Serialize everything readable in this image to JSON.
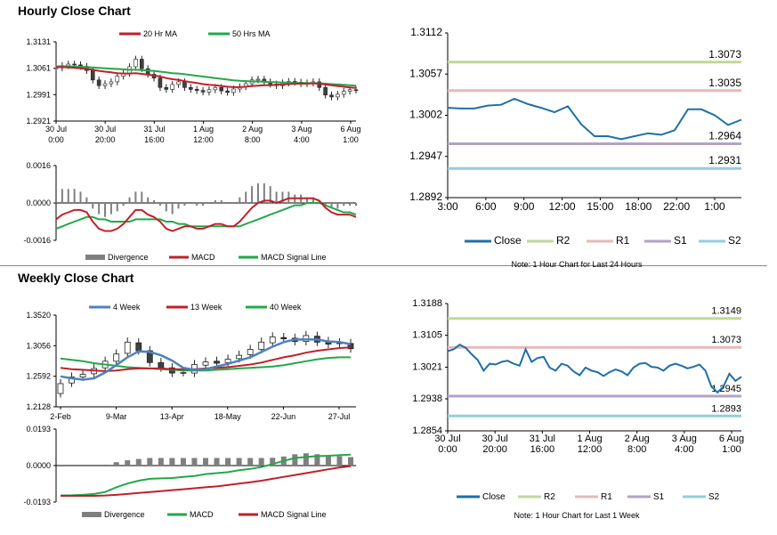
{
  "sections": {
    "hourly_title": "Hourly Close Chart",
    "weekly_title": "Weekly Close Chart"
  },
  "colors": {
    "ma20": "#c0202a",
    "ma50": "#22a84a",
    "week4": "#4f81bd",
    "close": "#1f6fa8",
    "r2": "#c3d69b",
    "r1": "#e6b9b8",
    "s1": "#b3a2c7",
    "s2": "#93cddd",
    "divergence": "#7f7f7f",
    "candle_up": "#ffffff",
    "candle_down": "#404040"
  },
  "chart_data": [
    {
      "id": "hourly_price",
      "type": "candlestick",
      "title": "Hourly Close Chart",
      "legend": [
        "20 Hr MA",
        "50 Hrs MA"
      ],
      "yticks": [
        "1.3131",
        "1.3061",
        "1.2991",
        "1.2921"
      ],
      "ylim": [
        1.2921,
        1.3131
      ],
      "xticks": [
        [
          "30 Jul",
          "0:00"
        ],
        [
          "30 Jul",
          "20:00"
        ],
        [
          "31 Jul",
          "16:00"
        ],
        [
          "1 Aug",
          "12:00"
        ],
        [
          "2 Aug",
          "8:00"
        ],
        [
          "3 Aug",
          "4:00"
        ],
        [
          "6 Aug",
          "1:00"
        ]
      ],
      "close": [
        1.3062,
        1.3068,
        1.3072,
        1.307,
        1.3066,
        1.3055,
        1.303,
        1.3015,
        1.302,
        1.3025,
        1.304,
        1.3048,
        1.3065,
        1.3085,
        1.306,
        1.3045,
        1.3035,
        1.301,
        1.3005,
        1.3018,
        1.3025,
        1.301,
        1.3005,
        1.3002,
        1.2998,
        1.3004,
        1.301,
        1.3001,
        1.2997,
        1.3006,
        1.3012,
        1.302,
        1.303,
        1.3032,
        1.3025,
        1.3019,
        1.3015,
        1.3022,
        1.3026,
        1.3024,
        1.302,
        1.3022,
        1.3025,
        1.301,
        1.299,
        1.2985,
        1.2992,
        1.3,
        1.3004,
        1.3003
      ],
      "ma20": [
        1.3064,
        1.3064,
        1.3063,
        1.3062,
        1.3061,
        1.3059,
        1.3057,
        1.3054,
        1.3052,
        1.305,
        1.3048,
        1.3047,
        1.3047,
        1.3048,
        1.3046,
        1.3044,
        1.3042,
        1.3039,
        1.3035,
        1.3032,
        1.303,
        1.3027,
        1.3024,
        1.3022,
        1.3019,
        1.3017,
        1.3016,
        1.3014,
        1.3012,
        1.3011,
        1.3011,
        1.3012,
        1.3014,
        1.3015,
        1.3016,
        1.3016,
        1.3017,
        1.3018,
        1.3019,
        1.302,
        1.302,
        1.302,
        1.3021,
        1.302,
        1.3018,
        1.3016,
        1.3014,
        1.3012,
        1.301,
        1.3009
      ],
      "ma50": [
        1.3066,
        1.3066,
        1.3066,
        1.3065,
        1.3065,
        1.3064,
        1.3063,
        1.3062,
        1.3061,
        1.306,
        1.3059,
        1.3058,
        1.3057,
        1.3057,
        1.3056,
        1.3055,
        1.3054,
        1.3052,
        1.305,
        1.3048,
        1.3047,
        1.3045,
        1.3043,
        1.3041,
        1.3039,
        1.3037,
        1.3035,
        1.3033,
        1.3031,
        1.3029,
        1.3028,
        1.3027,
        1.3026,
        1.3026,
        1.3025,
        1.3024,
        1.3024,
        1.3023,
        1.3023,
        1.3022,
        1.3022,
        1.3022,
        1.3021,
        1.3021,
        1.302,
        1.3019,
        1.3018,
        1.3017,
        1.3016,
        1.3015
      ]
    },
    {
      "id": "hourly_macd",
      "type": "line+bar",
      "legend": [
        "Divergence",
        "MACD",
        "MACD Signal Line"
      ],
      "yticks": [
        "0.0016",
        "0.0000",
        "-0.0016"
      ],
      "ylim": [
        -0.0016,
        0.0016
      ],
      "macd": [
        -0.0007,
        -0.0005,
        -0.0004,
        -0.0003,
        -0.0003,
        -0.0004,
        -0.0008,
        -0.0011,
        -0.0012,
        -0.0012,
        -0.0011,
        -0.0009,
        -0.0006,
        -0.0003,
        -0.0003,
        -0.0005,
        -0.0006,
        -0.0008,
        -0.0011,
        -0.0012,
        -0.0011,
        -0.001,
        -0.001,
        -0.0011,
        -0.0011,
        -0.001,
        -0.0009,
        -0.0009,
        -0.001,
        -0.001,
        -0.0008,
        -0.0005,
        -0.0002,
        0.0,
        0.0001,
        0.0001,
        0.0,
        0.0001,
        0.0002,
        0.0002,
        0.0002,
        0.0002,
        0.0002,
        0.0001,
        -0.0002,
        -0.0004,
        -0.0005,
        -0.0005,
        -0.0005,
        -0.0006
      ],
      "signal": [
        -0.0011,
        -0.001,
        -0.0009,
        -0.0008,
        -0.0007,
        -0.0006,
        -0.0006,
        -0.0007,
        -0.0007,
        -0.0008,
        -0.0008,
        -0.0008,
        -0.0008,
        -0.0007,
        -0.0007,
        -0.0007,
        -0.0007,
        -0.0007,
        -0.0008,
        -0.0008,
        -0.0009,
        -0.0009,
        -0.001,
        -0.001,
        -0.001,
        -0.001,
        -0.001,
        -0.001,
        -0.001,
        -0.001,
        -0.001,
        -0.0009,
        -0.0008,
        -0.0007,
        -0.0006,
        -0.0005,
        -0.0004,
        -0.0003,
        -0.0002,
        -0.0001,
        -0.0001,
        0.0,
        0.0,
        0.0,
        -0.0001,
        -0.0002,
        -0.0003,
        -0.0004,
        -0.0004,
        -0.0005
      ]
    },
    {
      "id": "hourly_pivot",
      "type": "line",
      "note": "Note: 1 Hour Chart for Last 24 Hours",
      "yticks": [
        "1.3112",
        "1.3057",
        "1.3002",
        "1.2947",
        "1.2892"
      ],
      "ylim": [
        1.2892,
        1.3112
      ],
      "xticks": [
        "3:00",
        "6:00",
        "9:00",
        "12:00",
        "15:00",
        "18:00",
        "22:00",
        "1:00"
      ],
      "close": [
        1.3012,
        1.3011,
        1.3011,
        1.3015,
        1.3016,
        1.3024,
        1.3017,
        1.3012,
        1.3006,
        1.3014,
        1.299,
        1.2974,
        1.2974,
        1.297,
        1.2974,
        1.2978,
        1.2976,
        1.2982,
        1.301,
        1.301,
        1.3002,
        1.2989,
        1.2996
      ],
      "levels": {
        "R2": 1.3073,
        "R1": 1.3035,
        "S1": 1.2964,
        "S2": 1.2931
      },
      "level_labels": [
        "1.3073",
        "1.3035",
        "1.2964",
        "1.2931"
      ],
      "legend": [
        "Close",
        "R2",
        "R1",
        "S1",
        "S2"
      ]
    },
    {
      "id": "weekly_price",
      "type": "candlestick",
      "title": "Weekly Close Chart",
      "legend": [
        "4 Week",
        "13 Week",
        "40 Week"
      ],
      "yticks": [
        "1.3520",
        "1.3056",
        "1.2592",
        "1.2128"
      ],
      "ylim": [
        1.2128,
        1.352
      ],
      "xticks": [
        "2-Feb",
        "9-Mar",
        "13-Apr",
        "18-May",
        "22-Jun",
        "27-Jul"
      ],
      "open": [
        1.233,
        1.249,
        1.258,
        1.263,
        1.272,
        1.282,
        1.294,
        1.31,
        1.298,
        1.28,
        1.272,
        1.265,
        1.264,
        1.276,
        1.282,
        1.28,
        1.286,
        1.292,
        1.3,
        1.31,
        1.318,
        1.317,
        1.312,
        1.32,
        1.312,
        1.31,
        1.309
      ],
      "close": [
        1.248,
        1.258,
        1.262,
        1.271,
        1.282,
        1.293,
        1.311,
        1.298,
        1.28,
        1.272,
        1.264,
        1.265,
        1.277,
        1.281,
        1.279,
        1.285,
        1.291,
        1.3,
        1.311,
        1.319,
        1.316,
        1.312,
        1.321,
        1.311,
        1.308,
        1.309,
        1.301
      ],
      "w4": [
        1.259,
        1.256,
        1.254,
        1.256,
        1.265,
        1.276,
        1.288,
        1.297,
        1.296,
        1.291,
        1.283,
        1.272,
        1.269,
        1.27,
        1.274,
        1.278,
        1.283,
        1.288,
        1.296,
        1.304,
        1.311,
        1.315,
        1.315,
        1.315,
        1.312,
        1.311,
        1.308
      ],
      "w13": [
        1.272,
        1.27,
        1.269,
        1.268,
        1.267,
        1.268,
        1.27,
        1.271,
        1.271,
        1.271,
        1.27,
        1.27,
        1.27,
        1.271,
        1.272,
        1.273,
        1.275,
        1.277,
        1.28,
        1.284,
        1.288,
        1.291,
        1.295,
        1.298,
        1.3,
        1.302,
        1.303
      ],
      "w40": [
        1.286,
        1.284,
        1.282,
        1.279,
        1.277,
        1.275,
        1.273,
        1.272,
        1.271,
        1.27,
        1.269,
        1.268,
        1.268,
        1.268,
        1.269,
        1.27,
        1.271,
        1.272,
        1.273,
        1.274,
        1.276,
        1.279,
        1.282,
        1.285,
        1.287,
        1.288,
        1.288
      ]
    },
    {
      "id": "weekly_macd",
      "type": "line+bar",
      "legend": [
        "Divergence",
        "MACD",
        "MACD Signal Line"
      ],
      "yticks": [
        "0.0193",
        "0.0000",
        "-0.0193"
      ],
      "ylim": [
        -0.0193,
        0.0193
      ],
      "divergence": [
        -0.0005,
        -0.0004,
        -0.0003,
        -0.0002,
        0.0005,
        0.0018,
        0.0028,
        0.0035,
        0.004,
        0.004,
        0.004,
        0.004,
        0.004,
        0.004,
        0.004,
        0.004,
        0.004,
        0.004,
        0.004,
        0.0041,
        0.0048,
        0.006,
        0.0065,
        0.006,
        0.0055,
        0.005,
        0.0045
      ],
      "macd": [
        -0.0158,
        -0.0157,
        -0.0155,
        -0.015,
        -0.014,
        -0.0115,
        -0.0095,
        -0.008,
        -0.007,
        -0.0068,
        -0.0066,
        -0.006,
        -0.0055,
        -0.0045,
        -0.004,
        -0.0035,
        -0.0025,
        -0.0018,
        -0.0008,
        0.0008,
        0.0025,
        0.004,
        0.0045,
        0.005,
        0.0052,
        0.0055,
        0.0058
      ],
      "signal": [
        -0.016,
        -0.016,
        -0.016,
        -0.016,
        -0.0158,
        -0.0155,
        -0.015,
        -0.0145,
        -0.014,
        -0.0135,
        -0.013,
        -0.0125,
        -0.012,
        -0.0115,
        -0.011,
        -0.0103,
        -0.0095,
        -0.0088,
        -0.008,
        -0.007,
        -0.006,
        -0.005,
        -0.004,
        -0.003,
        -0.002,
        -0.001,
        -0.0003
      ]
    },
    {
      "id": "weekly_pivot",
      "type": "line",
      "note": "Note: 1 Hour Chart for Last 1 Week",
      "yticks": [
        "1.3188",
        "1.3105",
        "1.3021",
        "1.2938",
        "1.2854"
      ],
      "ylim": [
        1.2854,
        1.3188
      ],
      "xticks": [
        [
          "30 Jul",
          "0:00"
        ],
        [
          "30 Jul",
          "20:00"
        ],
        [
          "31 Jul",
          "16:00"
        ],
        [
          "1 Aug",
          "12:00"
        ],
        [
          "2 Aug",
          "8:00"
        ],
        [
          "3 Aug",
          "4:00"
        ],
        [
          "6 Aug",
          "1:00"
        ]
      ],
      "close": [
        1.3063,
        1.3068,
        1.308,
        1.3072,
        1.3055,
        1.304,
        1.3012,
        1.303,
        1.3028,
        1.3035,
        1.3038,
        1.303,
        1.3025,
        1.3068,
        1.3035,
        1.3045,
        1.3048,
        1.302,
        1.3012,
        1.303,
        1.3025,
        1.301,
        1.3,
        1.302,
        1.3012,
        1.3008,
        1.2998,
        1.3008,
        1.3015,
        1.301,
        1.3,
        1.302,
        1.303,
        1.3032,
        1.3022,
        1.302,
        1.3012,
        1.3025,
        1.303,
        1.3025,
        1.3018,
        1.3022,
        1.3028,
        1.3012,
        1.297,
        1.2955,
        1.297,
        1.3004,
        1.2985,
        1.2996
      ],
      "levels": {
        "R2": 1.3149,
        "R1": 1.3073,
        "S1": 1.2945,
        "S2": 1.2893
      },
      "level_labels": [
        "1.3149",
        "1.3073",
        "1.2945",
        "1.2893"
      ],
      "legend": [
        "Close",
        "R2",
        "R1",
        "S1",
        "S2"
      ]
    }
  ]
}
